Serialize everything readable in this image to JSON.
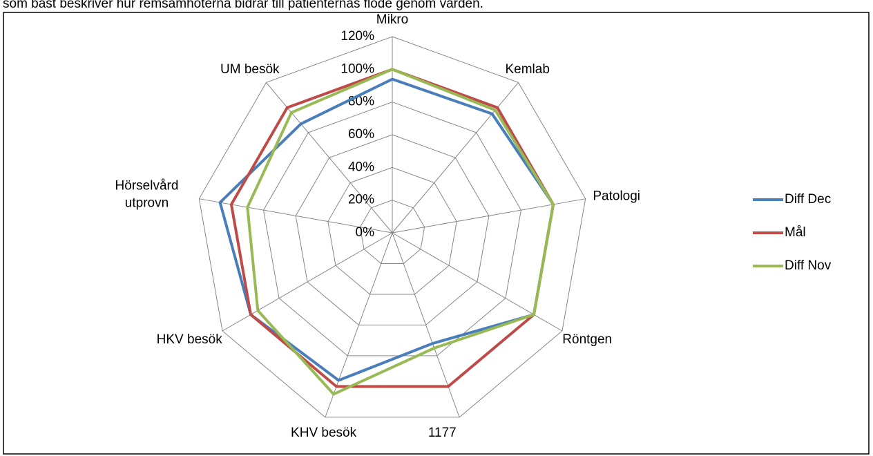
{
  "chart_data": {
    "type": "radar",
    "subtitle": "som bäst beskriver hur remsamhöterna bidrar till patienternas flöde genom vården.",
    "categories": [
      "Mikro",
      "Kemlab",
      "Patologi",
      "Röntgen",
      "1177",
      "KHV besök",
      "HKV besök",
      "Hörselvård utprovn",
      "UM besök"
    ],
    "series": [
      {
        "name": "Diff Dec",
        "color": "#4a7ebb",
        "values": [
          94,
          95,
          100,
          100,
          72,
          96,
          100,
          107,
          87
        ]
      },
      {
        "name": "Mål",
        "color": "#be4b48",
        "values": [
          100,
          100,
          100,
          100,
          100,
          100,
          100,
          100,
          100
        ]
      },
      {
        "name": "Diff Nov",
        "color": "#98b954",
        "values": [
          100,
          98,
          100,
          100,
          75,
          105,
          95,
          90,
          96
        ]
      }
    ],
    "ylim": [
      0,
      120
    ],
    "yticks": [
      {
        "value": 0,
        "label": "0%"
      },
      {
        "value": 20,
        "label": "20%"
      },
      {
        "value": 40,
        "label": "40%"
      },
      {
        "value": 60,
        "label": "60%"
      },
      {
        "value": 80,
        "label": "80%"
      },
      {
        "value": 100,
        "label": "100%"
      },
      {
        "value": 120,
        "label": "120%"
      }
    ],
    "grid": true,
    "legend": "right"
  }
}
